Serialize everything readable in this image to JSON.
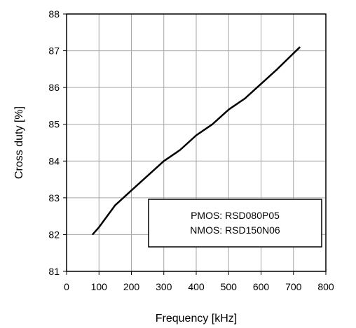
{
  "chart_data": {
    "type": "line",
    "title": "",
    "xlabel": "Frequency [kHz]",
    "ylabel": "Cross duty [%]",
    "xlim": [
      0,
      800
    ],
    "ylim": [
      81,
      88
    ],
    "xticks": [
      "0",
      "100",
      "200",
      "300",
      "400",
      "500",
      "600",
      "700",
      "800"
    ],
    "yticks": [
      "81",
      "82",
      "83",
      "84",
      "85",
      "86",
      "87",
      "88"
    ],
    "grid": true,
    "series": [
      {
        "x": [
          80,
          100,
          150,
          200,
          250,
          300,
          350,
          400,
          450,
          500,
          550,
          600,
          650,
          720
        ],
        "y": [
          82.0,
          82.2,
          82.8,
          83.2,
          83.6,
          84.0,
          84.3,
          84.7,
          85.0,
          85.4,
          85.7,
          86.1,
          86.5,
          87.1
        ],
        "color": "#000000"
      }
    ],
    "annotation": [
      "PMOS: RSD080P05",
      "NMOS: RSD150N06"
    ]
  }
}
